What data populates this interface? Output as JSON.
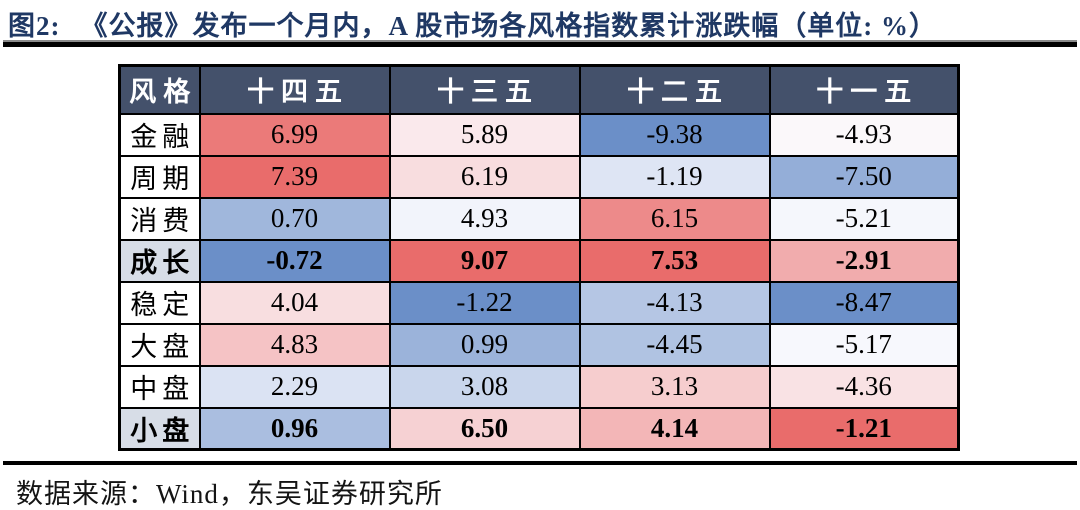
{
  "title": {
    "prefix": "图2:",
    "text": "《公报》发布一个月内，A 股市场各风格指数累计涨跌幅（单位: %）"
  },
  "source_note": "数据来源：Wind，东吴证券研究所",
  "table": {
    "corner_label": "风格",
    "columns": [
      "十四五",
      "十三五",
      "十二五",
      "十一五"
    ],
    "rows": [
      {
        "label": "金融",
        "bold": false,
        "values": [
          6.99,
          5.89,
          -9.38,
          -4.93
        ]
      },
      {
        "label": "周期",
        "bold": false,
        "values": [
          7.39,
          6.19,
          -1.19,
          -7.5
        ]
      },
      {
        "label": "消费",
        "bold": false,
        "values": [
          0.7,
          4.93,
          6.15,
          -5.21
        ]
      },
      {
        "label": "成长",
        "bold": true,
        "values": [
          -0.72,
          9.07,
          7.53,
          -2.91
        ]
      },
      {
        "label": "稳定",
        "bold": false,
        "values": [
          4.04,
          -1.22,
          -4.13,
          -8.47
        ]
      },
      {
        "label": "大盘",
        "bold": false,
        "values": [
          4.83,
          0.99,
          -4.45,
          -5.17
        ]
      },
      {
        "label": "中盘",
        "bold": false,
        "values": [
          2.29,
          3.08,
          3.13,
          -4.36
        ]
      },
      {
        "label": "小盘",
        "bold": true,
        "values": [
          0.96,
          6.5,
          4.14,
          -1.21
        ]
      }
    ],
    "styles": {
      "header_bg": "#44516B",
      "header_text": "#FFFFFF",
      "highlight_label_bg": "#D7DDE7",
      "title_color": "#1F3864"
    }
  },
  "colorscale": {
    "min_color": "#6B8FC8",
    "mid_color": "#FCFCFF",
    "max_color": "#E96C6B",
    "midpoint_rule": "per-column median (50th percentile)"
  },
  "chart_data": {
    "type": "heatmap",
    "title": "图2: 《公报》发布一个月内，A 股市场各风格指数累计涨跌幅（单位: %）",
    "unit": "%",
    "categories": [
      "十四五",
      "十三五",
      "十二五",
      "十一五"
    ],
    "row_axis_label": "风格",
    "series": [
      {
        "name": "金融",
        "values": [
          6.99,
          5.89,
          -9.38,
          -4.93
        ]
      },
      {
        "name": "周期",
        "values": [
          7.39,
          6.19,
          -1.19,
          -7.5
        ]
      },
      {
        "name": "消费",
        "values": [
          0.7,
          4.93,
          6.15,
          -5.21
        ]
      },
      {
        "name": "成长",
        "values": [
          -0.72,
          9.07,
          7.53,
          -2.91
        ]
      },
      {
        "name": "稳定",
        "values": [
          4.04,
          -1.22,
          -4.13,
          -8.47
        ]
      },
      {
        "name": "大盘",
        "values": [
          4.83,
          0.99,
          -4.45,
          -5.17
        ]
      },
      {
        "name": "中盘",
        "values": [
          2.29,
          3.08,
          3.13,
          -4.36
        ]
      },
      {
        "name": "小盘",
        "values": [
          0.96,
          6.5,
          4.14,
          -1.21
        ]
      }
    ],
    "legend": "none",
    "color_coding": "per-column 3-color scale: blue (min) → white (median) → red (max)",
    "source": "数据来源：Wind，东吴证券研究所"
  }
}
